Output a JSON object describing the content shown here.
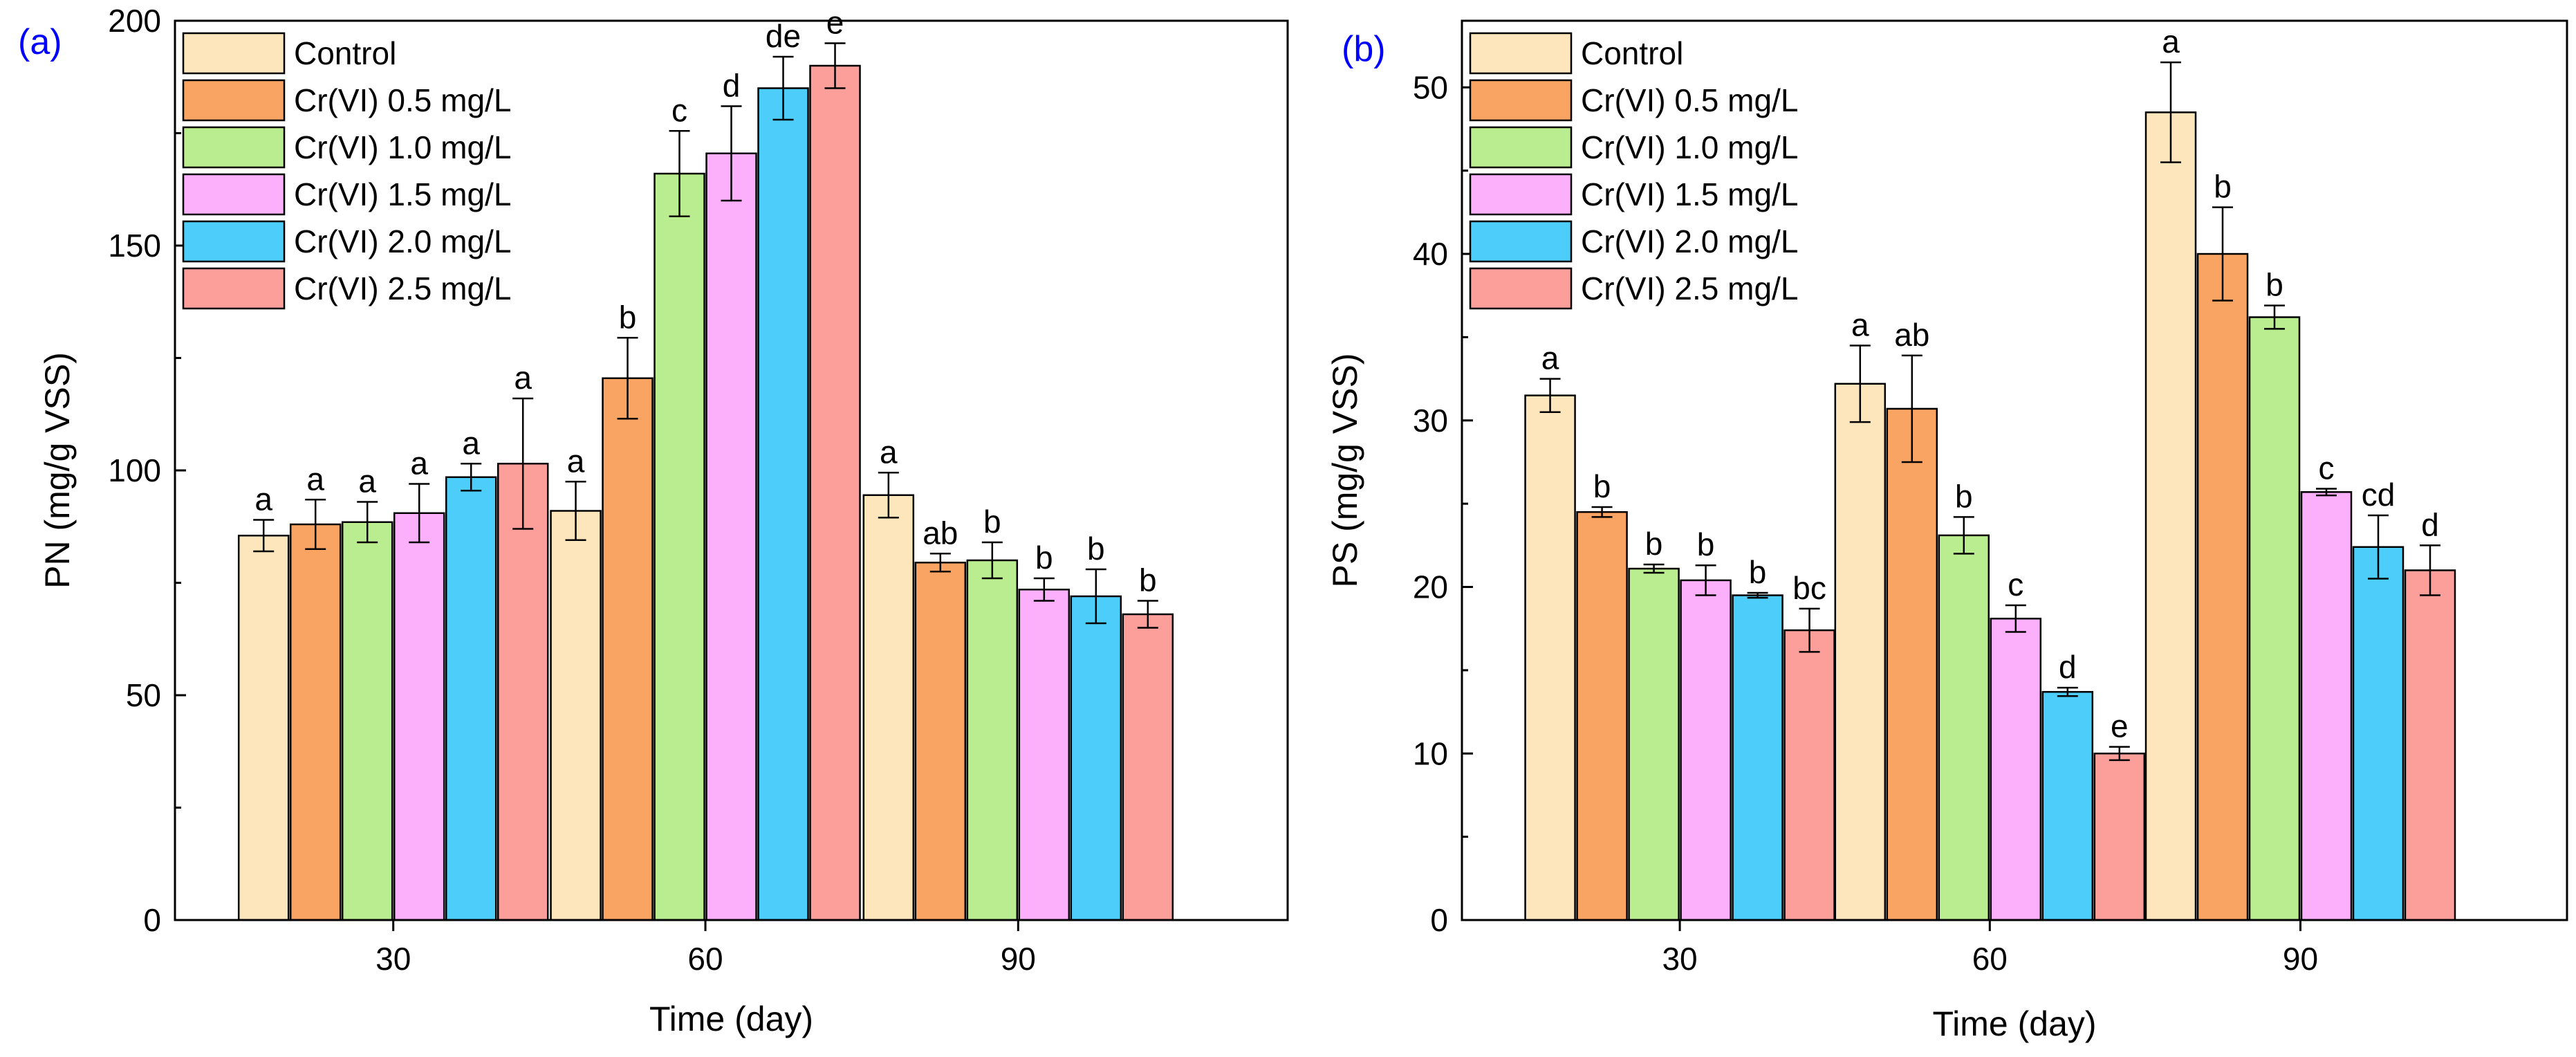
{
  "colors": {
    "series": [
      "#FDE5BC",
      "#F9A463",
      "#B9ED8F",
      "#FCB0FC",
      "#4DCDF9",
      "#FC9F9A"
    ],
    "panel_label": "#0000FF",
    "axis": "#000000"
  },
  "chart_data": [
    {
      "type": "bar",
      "panel_label": "(a)",
      "xlabel": "Time (day)",
      "ylabel": "PN (mg/g VSS)",
      "categories": [
        "30",
        "60",
        "90"
      ],
      "ylim": [
        0,
        200
      ],
      "yticks": [
        0,
        50,
        100,
        150,
        200
      ],
      "legend_position": "top-left",
      "series": [
        {
          "name": "Control",
          "values": [
            85.5,
            91,
            94.5
          ],
          "errors": [
            3.5,
            6.5,
            5
          ],
          "letters": [
            "a",
            "a",
            "a"
          ]
        },
        {
          "name": "Cr(VI) 0.5 mg/L",
          "values": [
            88,
            120.5,
            79.5
          ],
          "errors": [
            5.5,
            9,
            2
          ],
          "letters": [
            "a",
            "b",
            "ab"
          ]
        },
        {
          "name": "Cr(VI) 1.0 mg/L",
          "values": [
            88.5,
            166,
            80
          ],
          "errors": [
            4.5,
            9.5,
            4
          ],
          "letters": [
            "a",
            "c",
            "b"
          ]
        },
        {
          "name": "Cr(VI) 1.5 mg/L",
          "values": [
            90.5,
            170.5,
            73.5
          ],
          "errors": [
            6.5,
            10.5,
            2.5
          ],
          "letters": [
            "a",
            "d",
            "b"
          ]
        },
        {
          "name": "Cr(VI) 2.0 mg/L",
          "values": [
            98.5,
            185,
            72
          ],
          "errors": [
            3,
            7,
            6
          ],
          "letters": [
            "a",
            "de",
            "b"
          ]
        },
        {
          "name": "Cr(VI) 2.5 mg/L",
          "values": [
            101.5,
            190,
            68
          ],
          "errors": [
            14.5,
            5,
            3
          ],
          "letters": [
            "a",
            "e",
            "b"
          ]
        }
      ]
    },
    {
      "type": "bar",
      "panel_label": "(b)",
      "xlabel": "Time (day)",
      "ylabel": "PS (mg/g VSS)",
      "categories": [
        "30",
        "60",
        "90"
      ],
      "ylim": [
        0,
        54
      ],
      "yticks": [
        0,
        10,
        20,
        30,
        40,
        50
      ],
      "legend_position": "top-left",
      "series": [
        {
          "name": "Control",
          "values": [
            31.5,
            32.2,
            48.5
          ],
          "errors": [
            1.0,
            2.3,
            3.0
          ],
          "letters": [
            "a",
            "a",
            "a"
          ]
        },
        {
          "name": "Cr(VI) 0.5 mg/L",
          "values": [
            24.5,
            30.7,
            40.0
          ],
          "errors": [
            0.3,
            3.2,
            2.8
          ],
          "letters": [
            "b",
            "ab",
            "b"
          ]
        },
        {
          "name": "Cr(VI) 1.0 mg/L",
          "values": [
            21.1,
            23.1,
            36.2
          ],
          "errors": [
            0.25,
            1.1,
            0.7
          ],
          "letters": [
            "b",
            "b",
            "b"
          ]
        },
        {
          "name": "Cr(VI) 1.5 mg/L",
          "values": [
            20.4,
            18.1,
            25.7
          ],
          "errors": [
            0.9,
            0.8,
            0.2
          ],
          "letters": [
            "b",
            "c",
            "c"
          ]
        },
        {
          "name": "Cr(VI) 2.0 mg/L",
          "values": [
            19.5,
            13.7,
            22.4
          ],
          "errors": [
            0.15,
            0.25,
            1.9
          ],
          "letters": [
            "b",
            "d",
            "cd"
          ]
        },
        {
          "name": "Cr(VI) 2.5 mg/L",
          "values": [
            17.4,
            10.0,
            21.0
          ],
          "errors": [
            1.3,
            0.4,
            1.5
          ],
          "letters": [
            "bc",
            "e",
            "d"
          ]
        }
      ]
    }
  ]
}
